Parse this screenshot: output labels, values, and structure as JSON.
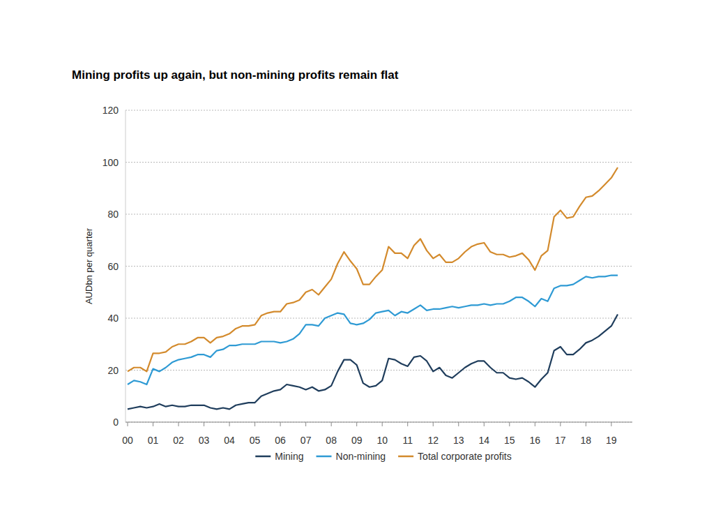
{
  "chart_data": {
    "type": "line",
    "title": "Mining profits up again, but non-mining profits remain flat",
    "y_label": "AUDbn per quarter",
    "categories": [
      "00",
      null,
      null,
      null,
      "01",
      null,
      null,
      null,
      "02",
      null,
      null,
      null,
      "03",
      null,
      null,
      null,
      "04",
      null,
      null,
      null,
      "05",
      null,
      null,
      null,
      "06",
      null,
      null,
      null,
      "07",
      null,
      null,
      null,
      "08",
      null,
      null,
      null,
      "09",
      null,
      null,
      null,
      "10",
      null,
      null,
      null,
      "11",
      null,
      null,
      null,
      "12",
      null,
      null,
      null,
      "13",
      null,
      null,
      null,
      "14",
      null,
      null,
      null,
      "15",
      null,
      null,
      null,
      "16",
      null,
      null,
      null,
      "17",
      null,
      null,
      null,
      "18",
      null,
      null,
      null,
      "19",
      null
    ],
    "series": [
      {
        "name": "Mining",
        "color": "#1f3d5c",
        "values": [
          5,
          5.5,
          6,
          5.5,
          6,
          7,
          6,
          6.5,
          6,
          6,
          6.5,
          6.5,
          6.5,
          5.5,
          5,
          5.5,
          5,
          6.5,
          7,
          7.5,
          7.5,
          10,
          11,
          12,
          12.5,
          14.5,
          14,
          13.5,
          12.5,
          13.5,
          12,
          12.5,
          14,
          19.5,
          24,
          24,
          22,
          15,
          13.5,
          14,
          16,
          24.5,
          24,
          22.5,
          21.5,
          25,
          25.5,
          23.5,
          19.5,
          21,
          18,
          17,
          19,
          21,
          22.5,
          23.5,
          23.5,
          21,
          19,
          19,
          17,
          16.5,
          17,
          15.5,
          13.5,
          16.5,
          19,
          27.5,
          29,
          26,
          26,
          28,
          30.5,
          31.5,
          33,
          35,
          37,
          41.5
        ]
      },
      {
        "name": "Non-mining",
        "color": "#2e9ad4",
        "values": [
          14.5,
          16,
          15.5,
          14.5,
          20.5,
          19.5,
          21,
          23,
          24,
          24.5,
          25,
          26,
          26,
          25,
          27.5,
          28,
          29.5,
          29.5,
          30,
          30,
          30,
          31,
          31,
          31,
          30.5,
          31,
          32,
          34,
          37.5,
          37.5,
          37,
          40,
          41,
          42,
          41.5,
          38,
          37.5,
          38,
          39.5,
          42,
          42.5,
          43,
          41,
          42.5,
          42,
          43.5,
          45,
          43,
          43.5,
          43.5,
          44,
          44.5,
          44,
          44.5,
          45,
          45,
          45.5,
          45,
          45.5,
          45.5,
          46.5,
          48,
          48,
          46.5,
          44.5,
          47.5,
          46.5,
          51.5,
          52.5,
          52.5,
          53,
          54.5,
          56,
          55.5,
          56,
          56,
          56.5,
          56.5
        ]
      },
      {
        "name": "Total corporate profits",
        "color": "#d38a2c",
        "values": [
          19.5,
          21,
          21,
          19.5,
          26.5,
          26.5,
          27,
          29,
          30,
          30,
          31,
          32.5,
          32.5,
          30.5,
          32.5,
          33,
          34,
          36,
          37,
          37,
          37.5,
          41,
          42,
          42.5,
          42.5,
          45.5,
          46,
          47,
          50,
          51,
          49,
          52,
          55,
          61,
          65.5,
          62,
          59,
          53,
          53,
          56,
          58.5,
          67.5,
          65,
          65,
          63,
          68,
          70.5,
          66,
          63,
          64.5,
          61.5,
          61.5,
          63,
          65.5,
          67.5,
          68.5,
          69,
          65.5,
          64.5,
          64.5,
          63.5,
          64,
          65,
          62.5,
          58.5,
          64,
          66,
          79,
          81.5,
          78.5,
          79,
          83,
          86.5,
          87,
          89,
          91.5,
          94,
          98
        ]
      }
    ],
    "ylim": [
      0,
      120
    ],
    "yticks": [
      0,
      20,
      40,
      60,
      80,
      100,
      120
    ],
    "grid": true,
    "legend": "bottom"
  }
}
